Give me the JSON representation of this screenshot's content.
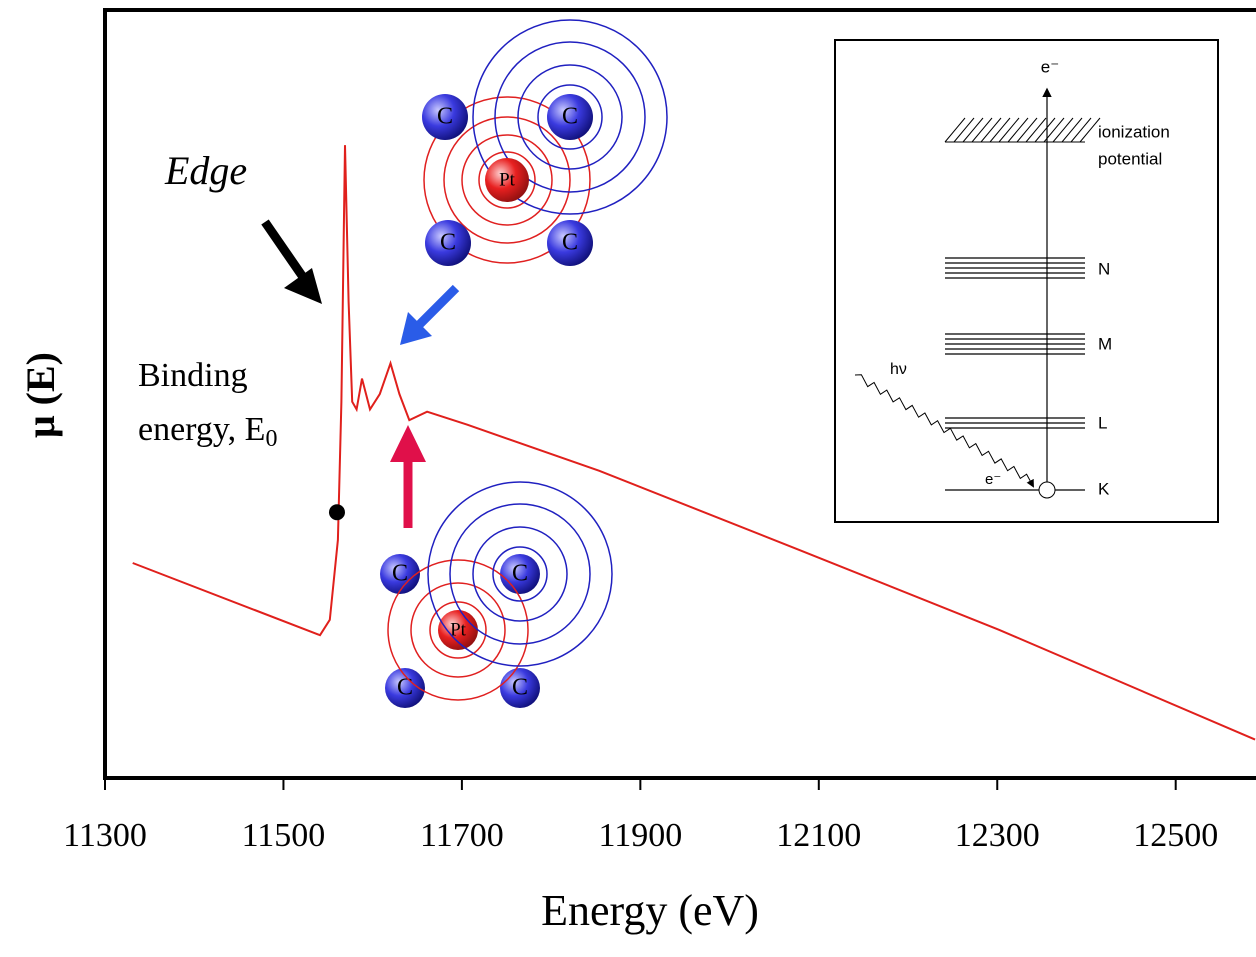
{
  "chart_data": {
    "type": "line",
    "x_label": "Energy (eV)",
    "y_label": "μ (E)",
    "x": [
      11331,
      11541,
      11552,
      11561,
      11565,
      11569,
      11573,
      11577,
      11582,
      11588,
      11597,
      11608,
      11620,
      11630,
      11641,
      11661,
      11706,
      11854,
      12078,
      12302,
      12589
    ],
    "series": [
      {
        "color": "#e0201c",
        "values": [
          0.28,
          0.186,
          0.206,
          0.31,
          0.49,
          0.824,
          0.62,
          0.49,
          0.48,
          0.52,
          0.48,
          0.5,
          0.54,
          0.5,
          0.466,
          0.477,
          0.46,
          0.4,
          0.297,
          0.193,
          0.05
        ]
      }
    ],
    "xlim": [
      11300,
      12590
    ],
    "ylim": [
      0,
      1
    ],
    "xticks": [
      11300,
      11500,
      11700,
      11900,
      12100,
      12300,
      12500
    ],
    "markers": [
      {
        "x": 11560,
        "y": 0.346
      }
    ],
    "annotations": {
      "edge": "Edge",
      "binding_line1": "Binding",
      "binding_line2": "energy, E",
      "binding_subscript": "0"
    },
    "atoms": {
      "carbon": "C",
      "platinum": "Pt"
    },
    "inset": {
      "electron_top": "e⁻",
      "ionization_line1": "ionization",
      "ionization_line2": "potential",
      "levels": [
        "N",
        "M",
        "L",
        "K"
      ],
      "photon": "hν",
      "electron_k": "e⁻"
    }
  }
}
